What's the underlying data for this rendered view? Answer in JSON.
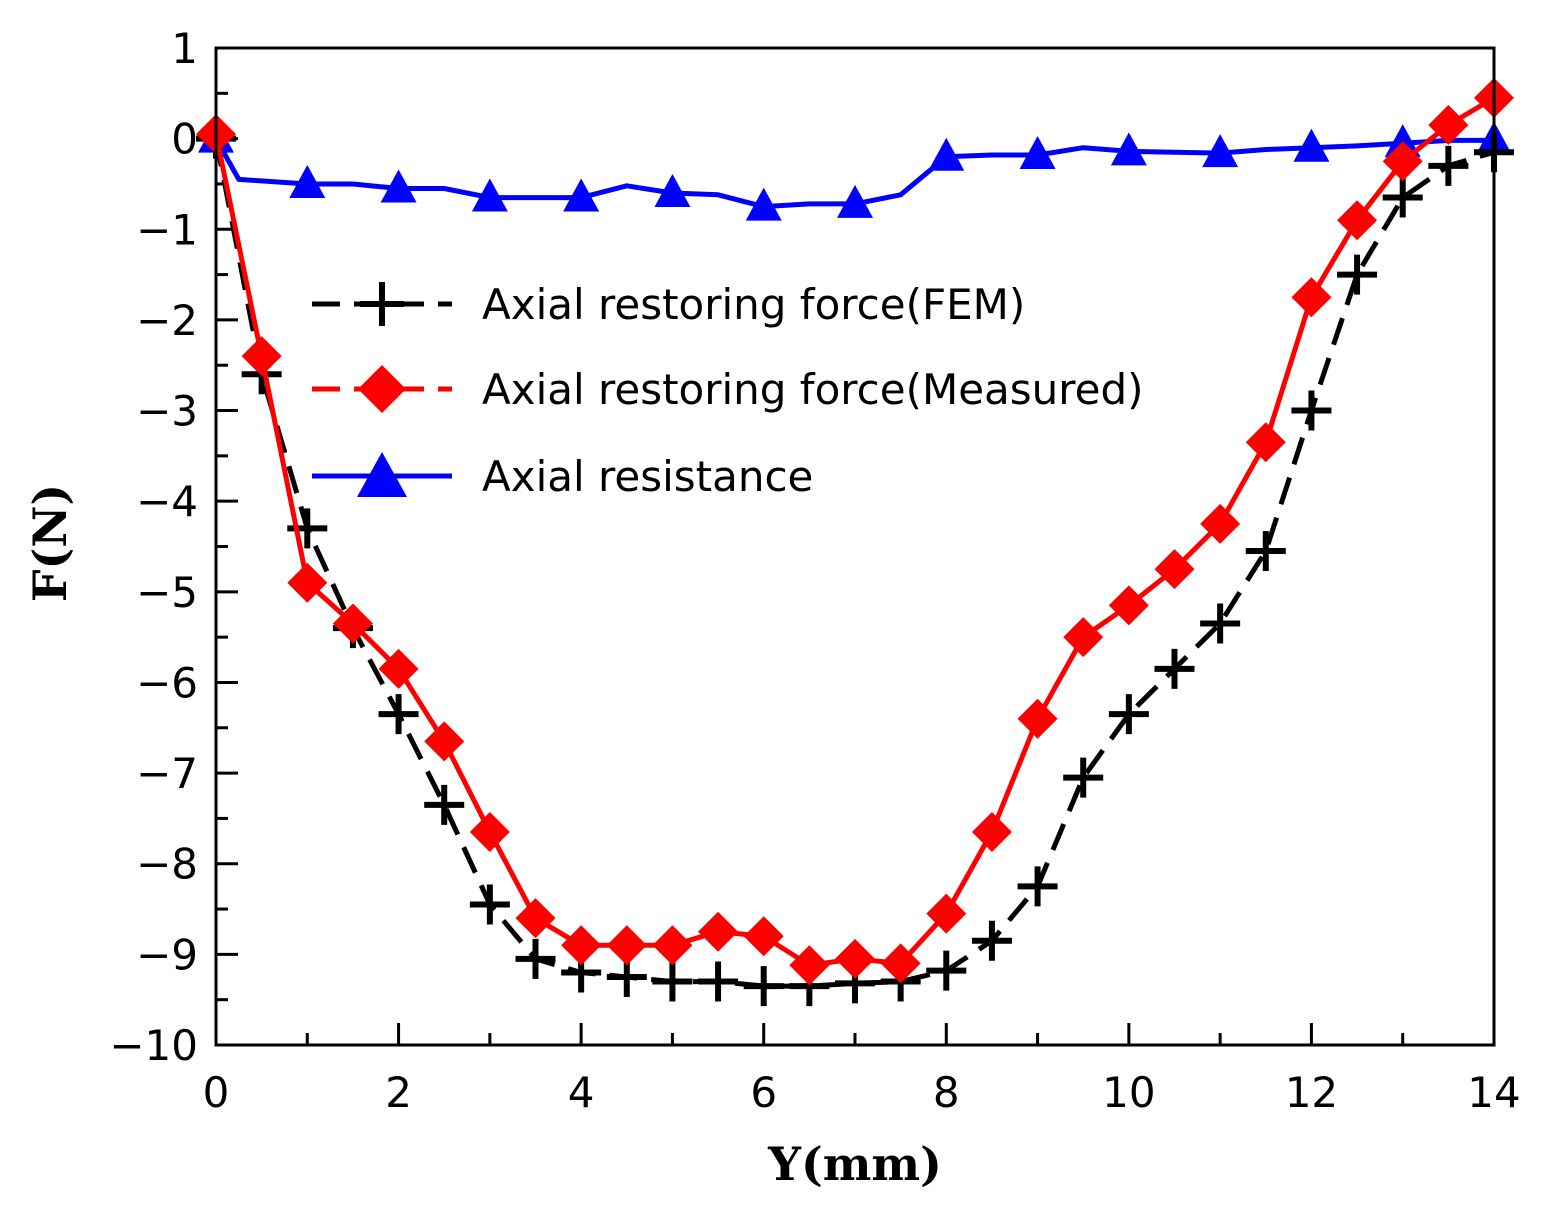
{
  "chart_data": {
    "type": "line",
    "xlabel": "Y(mm)",
    "ylabel": "F(N)",
    "xlim": [
      0,
      14
    ],
    "ylim": [
      -10,
      1
    ],
    "x_ticks": [
      0,
      2,
      4,
      6,
      8,
      10,
      12,
      14
    ],
    "y_ticks": [
      1,
      0,
      -1,
      -2,
      -3,
      -4,
      -5,
      -6,
      -7,
      -8,
      -9,
      -10
    ],
    "x_tick_labels": [
      "0",
      "2",
      "4",
      "6",
      "8",
      "10",
      "12",
      "14"
    ],
    "y_tick_labels": [
      "1",
      "0",
      "−1",
      "−2",
      "−3",
      "−4",
      "−5",
      "−6",
      "−7",
      "−8",
      "−9",
      "−10"
    ],
    "legend_position": "upper-left",
    "series": [
      {
        "name": "Axial restoring force(FEM)",
        "color": "#000000",
        "marker": "plus",
        "line": "dashed",
        "points": [
          [
            0,
            0
          ],
          [
            0.5,
            -2.6
          ],
          [
            1,
            -4.3
          ],
          [
            1.5,
            -5.4
          ],
          [
            2,
            -6.35
          ],
          [
            2.5,
            -7.35
          ],
          [
            3,
            -8.45
          ],
          [
            3.5,
            -9.05
          ],
          [
            4,
            -9.2
          ],
          [
            4.5,
            -9.25
          ],
          [
            5,
            -9.3
          ],
          [
            5.5,
            -9.3
          ],
          [
            6,
            -9.35
          ],
          [
            6.5,
            -9.35
          ],
          [
            7,
            -9.32
          ],
          [
            7.5,
            -9.3
          ],
          [
            8,
            -9.18
          ],
          [
            8.5,
            -8.85
          ],
          [
            9,
            -8.25
          ],
          [
            9.5,
            -7.05
          ],
          [
            10,
            -6.35
          ],
          [
            10.5,
            -5.85
          ],
          [
            11,
            -5.35
          ],
          [
            11.5,
            -4.55
          ],
          [
            12,
            -3.0
          ],
          [
            12.5,
            -1.5
          ],
          [
            13,
            -0.65
          ],
          [
            13.5,
            -0.3
          ],
          [
            14,
            -0.15
          ]
        ]
      },
      {
        "name": "Axial restoring force(Measured)",
        "color": "#ff0000",
        "marker": "diamond",
        "line": "solid",
        "points": [
          [
            0,
            0.05
          ],
          [
            0.5,
            -2.4
          ],
          [
            1,
            -4.9
          ],
          [
            1.5,
            -5.35
          ],
          [
            2,
            -5.85
          ],
          [
            2.5,
            -6.65
          ],
          [
            3,
            -7.65
          ],
          [
            3.5,
            -8.6
          ],
          [
            4,
            -8.9
          ],
          [
            4.5,
            -8.9
          ],
          [
            5,
            -8.9
          ],
          [
            5.5,
            -8.75
          ],
          [
            6,
            -8.8
          ],
          [
            6.5,
            -9.12
          ],
          [
            7,
            -9.05
          ],
          [
            7.5,
            -9.1
          ],
          [
            8,
            -8.55
          ],
          [
            8.5,
            -7.65
          ],
          [
            9,
            -6.4
          ],
          [
            9.5,
            -5.5
          ],
          [
            10,
            -5.15
          ],
          [
            10.5,
            -4.75
          ],
          [
            11,
            -4.25
          ],
          [
            11.5,
            -3.35
          ],
          [
            12,
            -1.75
          ],
          [
            12.5,
            -0.9
          ],
          [
            13,
            -0.25
          ],
          [
            13.5,
            0.15
          ],
          [
            14,
            0.45
          ]
        ]
      },
      {
        "name": "Axial resistance",
        "color": "#0000ff",
        "marker": "triangle",
        "line": "solid",
        "points": [
          [
            0,
            0
          ],
          [
            0.25,
            -0.45
          ],
          [
            1,
            -0.5
          ],
          [
            1.5,
            -0.5
          ],
          [
            2,
            -0.55
          ],
          [
            2.5,
            -0.55
          ],
          [
            3,
            -0.65
          ],
          [
            3.5,
            -0.65
          ],
          [
            4,
            -0.65
          ],
          [
            4.5,
            -0.52
          ],
          [
            5,
            -0.6
          ],
          [
            5.5,
            -0.62
          ],
          [
            6,
            -0.75
          ],
          [
            6.5,
            -0.72
          ],
          [
            7,
            -0.72
          ],
          [
            7.5,
            -0.62
          ],
          [
            8,
            -0.2
          ],
          [
            8.5,
            -0.18
          ],
          [
            9,
            -0.18
          ],
          [
            9.5,
            -0.1
          ],
          [
            10,
            -0.14
          ],
          [
            10.5,
            -0.15
          ],
          [
            11,
            -0.16
          ],
          [
            11.5,
            -0.12
          ],
          [
            12,
            -0.1
          ],
          [
            12.5,
            -0.08
          ],
          [
            13,
            -0.05
          ],
          [
            13.5,
            -0.02
          ],
          [
            14,
            -0.02
          ]
        ],
        "marker_x": [
          0,
          1,
          2,
          3,
          4,
          5,
          6,
          7,
          8,
          9,
          10,
          11,
          12,
          13,
          14
        ]
      }
    ]
  }
}
